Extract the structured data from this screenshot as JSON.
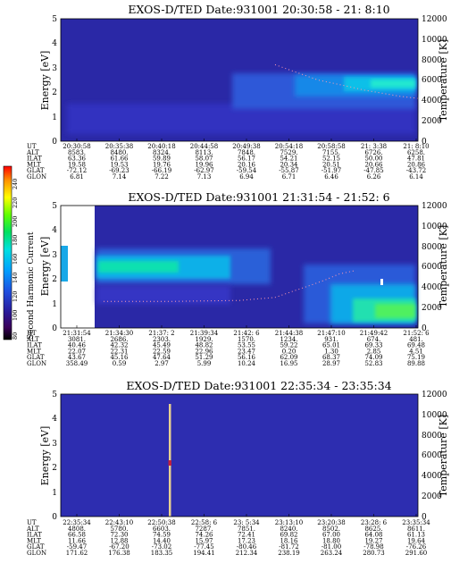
{
  "colorbar": {
    "label": "Second Harmonic Current",
    "ticks": [
      "240",
      "220",
      "200",
      "180",
      "160",
      "140",
      "120",
      "100",
      "80"
    ]
  },
  "orbit_labels": [
    "UT",
    "ALT",
    "ILAT",
    "MLT",
    "GLAT",
    "GLON"
  ],
  "chart_data": [
    {
      "type": "heatmap",
      "title": "EXOS-D/TED   Date:931001  20:30:58 - 21: 8:10",
      "ylabel": "Energy [eV]",
      "y2label": "Temperature [K]",
      "ylim": [
        0,
        5
      ],
      "y2lim": [
        0,
        12000
      ],
      "yticks": [
        "0",
        "1",
        "2",
        "3",
        "4",
        "5"
      ],
      "y2ticks": [
        "0",
        "2000",
        "4000",
        "6000",
        "8000",
        "10000",
        "12000"
      ],
      "orbit": [
        [
          "20:30:58",
          "20:35:38",
          "20:40:18",
          "20:44:58",
          "20:49:38",
          "20:54:18",
          "20:58:58",
          "21: 3:38",
          "21: 8:10"
        ],
        [
          "8583.",
          "8480.",
          "8324.",
          "8113.",
          "7848.",
          "7529.",
          "7155.",
          "6726.",
          "6258."
        ],
        [
          "63.36",
          "61.66",
          "59.89",
          "58.07",
          "56.17",
          "54.21",
          "52.15",
          "50.00",
          "47.81"
        ],
        [
          "19.58",
          "19.53",
          "19.76",
          "19.96",
          "20.16",
          "20.34",
          "20.51",
          "20.66",
          "20.86"
        ],
        [
          "-72.12",
          "-69.23",
          "-66.19",
          "-62.97",
          "-59.54",
          "-55.87",
          "-51.97",
          "-47.85",
          "-43.72"
        ],
        [
          "6.81",
          "7.14",
          "7.22",
          "7.13",
          "6.94",
          "6.71",
          "6.46",
          "6.26",
          "6.14"
        ]
      ],
      "temperature_K": [
        [
          0.6,
          7500
        ],
        [
          0.64,
          7000
        ],
        [
          0.68,
          6500
        ],
        [
          0.72,
          6000
        ],
        [
          0.76,
          5700
        ],
        [
          0.8,
          5400
        ],
        [
          0.85,
          5000
        ],
        [
          0.9,
          4700
        ],
        [
          0.95,
          4400
        ],
        [
          1.0,
          4200
        ]
      ]
    },
    {
      "type": "heatmap",
      "title": "EXOS-D/TED   Date:931001  21:31:54 - 21:52: 6",
      "ylabel": "Energy [eV]",
      "y2label": "Temperature [K]",
      "ylim": [
        0,
        5
      ],
      "y2lim": [
        0,
        12000
      ],
      "yticks": [
        "0",
        "1",
        "2",
        "3",
        "4",
        "5"
      ],
      "y2ticks": [
        "0",
        "2000",
        "4000",
        "6000",
        "8000",
        "10000",
        "12000"
      ],
      "orbit": [
        [
          "21:31:54",
          "21:34:30",
          "21:37: 2",
          "21:39:34",
          "21:42: 6",
          "21:44:38",
          "21:47:10",
          "21:49:42",
          "21:52: 6"
        ],
        [
          "3081.",
          "2686.",
          "2303.",
          "1929.",
          "1570.",
          "1234.",
          "931.",
          "674.",
          "481."
        ],
        [
          "40.46",
          "42.32",
          "45.49",
          "48.82",
          "53.55",
          "59.22",
          "65.01",
          "69.33",
          "69.48"
        ],
        [
          "22.07",
          "22.31",
          "22.59",
          "22.96",
          "23.47",
          "0.20",
          "1.30",
          "2.85",
          "4.51"
        ],
        [
          "43.67",
          "45.16",
          "47.64",
          "51.29",
          "56.16",
          "62.09",
          "68.37",
          "74.09",
          "75.19"
        ],
        [
          "358.49",
          "0.59",
          "2.97",
          "5.99",
          "10.24",
          "16.95",
          "28.97",
          "52.83",
          "89.88"
        ]
      ],
      "temperature_K": [
        [
          0.12,
          2600
        ],
        [
          0.3,
          2600
        ],
        [
          0.5,
          2700
        ],
        [
          0.6,
          3000
        ],
        [
          0.65,
          3600
        ],
        [
          0.7,
          4200
        ],
        [
          0.74,
          4700
        ],
        [
          0.78,
          5300
        ],
        [
          0.82,
          5600
        ]
      ]
    },
    {
      "type": "heatmap",
      "title": "EXOS-D/TED   Date:931001  22:35:34 - 23:35:34",
      "ylabel": "Energy [eV]",
      "y2label": "Temperature [K]",
      "ylim": [
        0,
        5
      ],
      "y2lim": [
        0,
        12000
      ],
      "yticks": [
        "0",
        "1",
        "2",
        "3",
        "4",
        "5"
      ],
      "y2ticks": [
        "0",
        "2000",
        "4000",
        "6000",
        "8000",
        "10000",
        "12000"
      ],
      "orbit": [
        [
          "22:35:34",
          "22:43:10",
          "22:50:38",
          "22:58: 6",
          "23: 5:34",
          "23:13:10",
          "23:20:38",
          "23:28: 6",
          "23:35:34"
        ],
        [
          "4808.",
          "5780.",
          "6603.",
          "7287.",
          "7851.",
          "8240.",
          "8502.",
          "8625.",
          "8611."
        ],
        [
          "66.58",
          "72.30",
          "74.59",
          "74.26",
          "72.41",
          "69.82",
          "67.00",
          "64.08",
          "61.13"
        ],
        [
          "11.66",
          "12.88",
          "14.40",
          "15.97",
          "17.23",
          "18.16",
          "18.80",
          "19.27",
          "19.64"
        ],
        [
          "-59.47",
          "-67.20",
          "-73.02",
          "-77.45",
          "-80.46",
          "-81.72",
          "-81.00",
          "-78.98",
          "-76.26"
        ],
        [
          "171.62",
          "176.38",
          "183.35",
          "194.41",
          "212.34",
          "238.19",
          "263.24",
          "280.73",
          "291.60"
        ]
      ],
      "temperature_K": []
    }
  ]
}
